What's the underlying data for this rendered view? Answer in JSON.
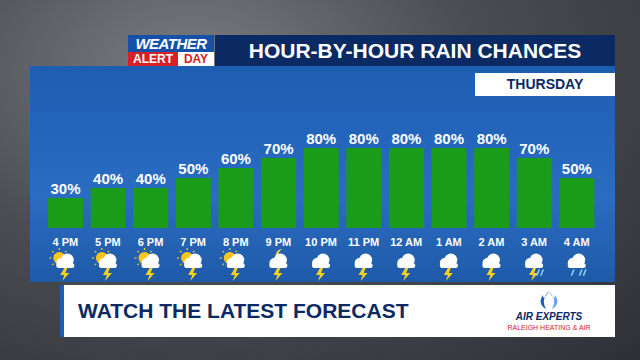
{
  "chart_data": {
    "type": "bar",
    "title": "HOUR-BY-HOUR RAIN CHANCES",
    "subtitle": "THURSDAY",
    "annotations": [
      "WEATHER",
      "ALERT",
      "DAY",
      "WATCH THE LATEST FORECAST",
      "AIR EXPERTS",
      "RALEIGH HEATING & AIR"
    ],
    "categories": [
      "4 PM",
      "5 PM",
      "6 PM",
      "7 PM",
      "8 PM",
      "9 PM",
      "10 PM",
      "11 PM",
      "12 AM",
      "1 AM",
      "2 AM",
      "3 AM",
      "4 AM"
    ],
    "values": [
      30,
      40,
      40,
      50,
      60,
      70,
      80,
      80,
      80,
      80,
      80,
      70,
      50
    ],
    "value_labels": [
      "30%",
      "40%",
      "40%",
      "50%",
      "60%",
      "70%",
      "80%",
      "80%",
      "80%",
      "80%",
      "80%",
      "70%",
      "50%"
    ],
    "color": "#1a9c1a",
    "ylim": [
      0,
      100
    ],
    "grid": false,
    "data_labels": true,
    "tick_labels": "x"
  }
}
